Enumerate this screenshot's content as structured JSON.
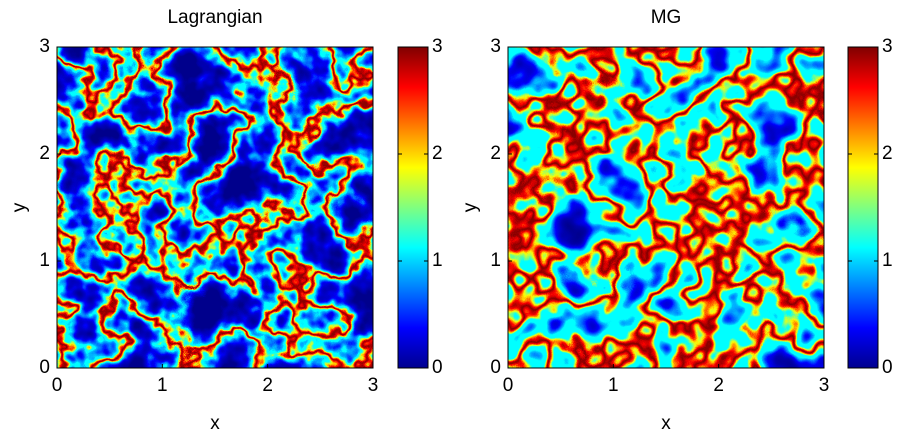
{
  "chart_data": [
    {
      "type": "heatmap",
      "title": "Lagrangian",
      "xlabel": "x",
      "ylabel": "y",
      "xlim": [
        0,
        3
      ],
      "ylim": [
        0,
        3
      ],
      "xticks": [
        0,
        1,
        2,
        3
      ],
      "yticks": [
        0,
        1,
        2,
        3
      ],
      "colormap": "jet",
      "clim": [
        0,
        3
      ],
      "cticks": [
        0,
        1,
        2,
        3
      ]
    },
    {
      "type": "heatmap",
      "title": "MG",
      "xlabel": "x",
      "ylabel": "y",
      "xlim": [
        0,
        3
      ],
      "ylim": [
        0,
        3
      ],
      "xticks": [
        0,
        1,
        2,
        3
      ],
      "yticks": [
        0,
        1,
        2,
        3
      ],
      "colormap": "jet",
      "clim": [
        0,
        3
      ],
      "cticks": [
        0,
        1,
        2,
        3
      ]
    }
  ]
}
